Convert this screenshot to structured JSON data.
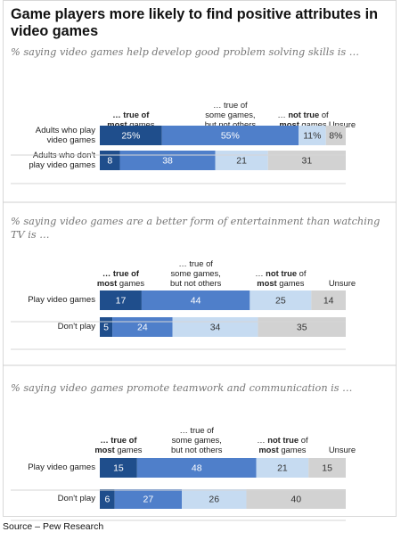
{
  "title": "Game players more likely to find positive attributes in video games",
  "source": "Source – Pew Research",
  "colors": {
    "true_most": "#1f4e8c",
    "true_some": "#4f7fca",
    "not_true_most": "#c6dbf1",
    "unsure": "#d2d2d2",
    "text_dark": "#ffffff",
    "text_light": "#333333"
  },
  "chart_data": [
    {
      "type": "bar",
      "orientation": "horizontal",
      "stacked": true,
      "subtitle": "% saying video games help develop good problem solving skills is …",
      "headers": {
        "true_most": {
          "line1": "… true of",
          "bold": "most",
          "rest": " games"
        },
        "true_some": {
          "line1": "… true of",
          "line2": "some games,",
          "line3": "but not others"
        },
        "not_true_most": {
          "line1_pre": "… ",
          "line1_bold": "not true",
          "line1_post": " of",
          "bold": "most",
          "rest": " games"
        },
        "unsure": "Unsure"
      },
      "categories": [
        "Adults who play video games",
        "Adults who don't play video games"
      ],
      "row_labels": [
        [
          "Adults who play",
          "video games"
        ],
        [
          "Adults who don't",
          "play video games"
        ]
      ],
      "series": [
        {
          "name": "… true of most games",
          "values": [
            25,
            8
          ],
          "labels": [
            "25%",
            "8"
          ]
        },
        {
          "name": "… true of some games, but not others",
          "values": [
            55,
            38
          ],
          "labels": [
            "55%",
            "38"
          ]
        },
        {
          "name": "… not true of most games",
          "values": [
            11,
            21
          ],
          "labels": [
            "11%",
            "21"
          ]
        },
        {
          "name": "Unsure",
          "values": [
            8,
            31
          ],
          "labels": [
            "8%",
            "31"
          ]
        }
      ]
    },
    {
      "type": "bar",
      "orientation": "horizontal",
      "stacked": true,
      "subtitle": "% saying video games are a better form of entertainment than watching TV is …",
      "headers": {
        "true_most": {
          "line1": "… true of",
          "bold": "most",
          "rest": " games"
        },
        "true_some": {
          "line1": "… true of",
          "line2": "some games,",
          "line3": "but not others"
        },
        "not_true_most": {
          "line1_pre": "… ",
          "line1_bold": "not true",
          "line1_post": " of",
          "bold": "most",
          "rest": " games"
        },
        "unsure": "Unsure"
      },
      "categories": [
        "Play video games",
        "Don't play"
      ],
      "row_labels": [
        [
          "Play video games"
        ],
        [
          "Don't play"
        ]
      ],
      "series": [
        {
          "name": "… true of most games",
          "values": [
            17,
            5
          ],
          "labels": [
            "17",
            "5"
          ]
        },
        {
          "name": "… true of some games, but not others",
          "values": [
            44,
            24
          ],
          "labels": [
            "44",
            "24"
          ]
        },
        {
          "name": "… not true of most games",
          "values": [
            25,
            34
          ],
          "labels": [
            "25",
            "34"
          ]
        },
        {
          "name": "Unsure",
          "values": [
            14,
            35
          ],
          "labels": [
            "14",
            "35"
          ]
        }
      ]
    },
    {
      "type": "bar",
      "orientation": "horizontal",
      "stacked": true,
      "subtitle": "% saying video games promote teamwork and communication is …",
      "headers": {
        "true_most": {
          "line1": "… true of",
          "bold": "most",
          "rest": " games"
        },
        "true_some": {
          "line1": "… true of",
          "line2": "some games,",
          "line3": "but not others"
        },
        "not_true_most": {
          "line1_pre": "… ",
          "line1_bold": "not true",
          "line1_post": " of",
          "bold": "most",
          "rest": " games"
        },
        "unsure": "Unsure"
      },
      "categories": [
        "Play video games",
        "Don't play"
      ],
      "row_labels": [
        [
          "Play video games"
        ],
        [
          "Don't play"
        ]
      ],
      "series": [
        {
          "name": "… true of most games",
          "values": [
            15,
            6
          ],
          "labels": [
            "15",
            "6"
          ]
        },
        {
          "name": "… true of some games, but not others",
          "values": [
            48,
            27
          ],
          "labels": [
            "48",
            "27"
          ]
        },
        {
          "name": "… not true of most games",
          "values": [
            21,
            26
          ],
          "labels": [
            "21",
            "26"
          ]
        },
        {
          "name": "Unsure",
          "values": [
            15,
            40
          ],
          "labels": [
            "15",
            "40"
          ]
        }
      ]
    }
  ]
}
